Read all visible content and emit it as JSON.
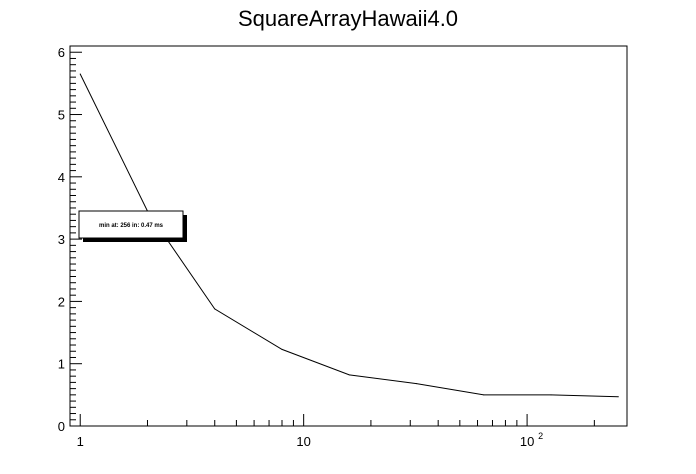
{
  "chart_data": {
    "type": "line",
    "title": "SquareArrayHawaii4.0",
    "xlabel": "",
    "ylabel": "",
    "x_scale": "log",
    "xlim": [
      0.9,
      280
    ],
    "ylim": [
      0,
      6.1
    ],
    "x_tick_labels": [
      {
        "value": 1,
        "base": "1",
        "exp": ""
      },
      {
        "value": 10,
        "base": "10",
        "exp": ""
      },
      {
        "value": 100,
        "base": "10",
        "exp": "2"
      }
    ],
    "y_tick_labels": [
      "0",
      "1",
      "2",
      "3",
      "4",
      "5",
      "6"
    ],
    "series": [
      {
        "x": [
          1,
          2,
          4,
          8,
          16,
          32,
          64,
          128,
          256
        ],
        "y": [
          5.65,
          3.45,
          1.88,
          1.23,
          0.82,
          0.68,
          0.5,
          0.5,
          0.47
        ]
      }
    ],
    "annotation": "min at: 256 in: 0.47 ms",
    "grid": false,
    "legend": "none",
    "colors": {
      "line": "#000000",
      "frame": "#000000",
      "annotation_fill": "#ffffff",
      "background": "#ffffff"
    }
  }
}
